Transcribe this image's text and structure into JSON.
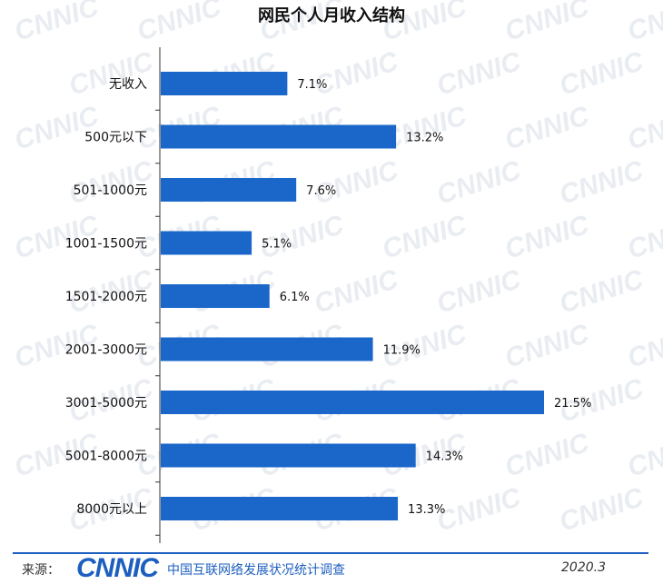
{
  "chart_data": {
    "type": "bar",
    "orientation": "horizontal",
    "title": "网民个人月收入结构",
    "categories": [
      "无收入",
      "500元以下",
      "501-1000元",
      "1001-1500元",
      "1501-2000元",
      "2001-3000元",
      "3001-5000元",
      "5001-8000元",
      "8000元以上"
    ],
    "values": [
      7.1,
      13.2,
      7.6,
      5.1,
      6.1,
      11.9,
      21.5,
      14.3,
      13.3
    ],
    "value_labels": [
      "7.1%",
      "13.2%",
      "7.6%",
      "5.1%",
      "6.1%",
      "11.9%",
      "21.5%",
      "14.3%",
      "13.3%"
    ],
    "xlim": [
      0,
      22
    ],
    "grid": false,
    "bar_color": "#1a66c9"
  },
  "footer": {
    "source_label": "来源：",
    "logo_text": "CNNIC",
    "org_name": "中国互联网络发展状况统计调查",
    "date": "2020.3"
  },
  "watermark": {
    "text": "CNNIC",
    "color": "#e9edf2"
  }
}
